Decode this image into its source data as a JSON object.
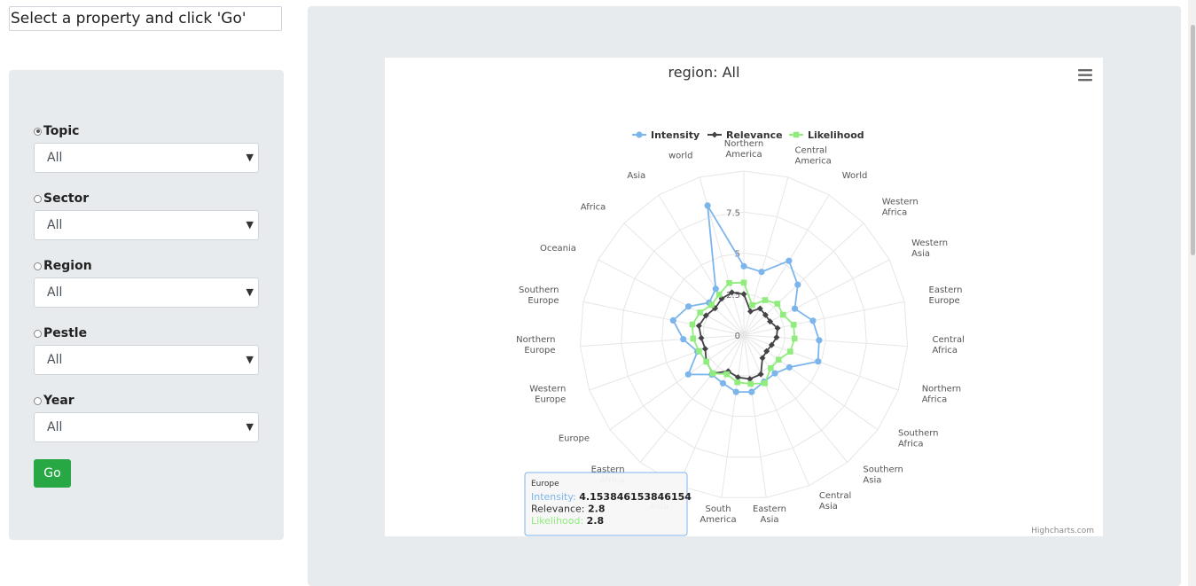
{
  "header": {
    "instruction": "Select a property and click 'Go'"
  },
  "filters": [
    {
      "label": "Topic",
      "selected": "All",
      "checked": true
    },
    {
      "label": "Sector",
      "selected": "All",
      "checked": false
    },
    {
      "label": "Region",
      "selected": "All",
      "checked": false
    },
    {
      "label": "Pestle",
      "selected": "All",
      "checked": false
    },
    {
      "label": "Year",
      "selected": "All",
      "checked": false
    }
  ],
  "go_label": "Go",
  "chart_data": {
    "type": "line",
    "subtype": "polar-radar",
    "title": "region: All",
    "categories": [
      "Northern America",
      "Central America",
      "World",
      "Western Africa",
      "Western Asia",
      "Eastern Europe",
      "Central Africa",
      "Northern Africa",
      "Southern Africa",
      "Southern Asia",
      "Central Asia",
      "Eastern Asia",
      "South America",
      "Southern Asia",
      "Eastern Africa",
      "Europe",
      "Western Europe",
      "Northern Europe",
      "Southern Europe",
      "Oceania",
      "Africa",
      "Asia",
      "world"
    ],
    "radial_ticks": [
      "0",
      "2.5",
      "5",
      "7.5"
    ],
    "ylim": [
      0,
      10
    ],
    "grid": true,
    "legend_position": "top",
    "series": [
      {
        "name": "Intensity",
        "color": "#7cb5ec",
        "marker": "circle",
        "values": [
          4.2,
          4.0,
          5.3,
          4.5,
          3.5,
          4.3,
          4.6,
          4.8,
          3.4,
          3.0,
          3.1,
          3.5,
          3.5,
          3.2,
          3.1,
          4.15,
          3.0,
          3.7,
          4.4,
          3.8,
          2.9,
          3.3,
          8.2
        ]
      },
      {
        "name": "Relevance",
        "color": "#434348",
        "marker": "diamond",
        "values": [
          2.5,
          1.5,
          1.9,
          1.8,
          1.8,
          2.1,
          2.0,
          1.8,
          1.7,
          1.8,
          2.6,
          2.7,
          2.6,
          2.4,
          3.0,
          2.8,
          2.5,
          2.6,
          2.8,
          2.6,
          2.4,
          2.6,
          2.7
        ]
      },
      {
        "name": "Likelihood",
        "color": "#90ed7d",
        "marker": "square",
        "values": [
          3.2,
          1.9,
          2.5,
          2.8,
          2.7,
          3.1,
          3.1,
          3.0,
          2.6,
          2.6,
          3.2,
          3.0,
          2.9,
          2.6,
          3.0,
          2.8,
          2.9,
          3.1,
          3.2,
          3.0,
          2.7,
          2.9,
          3.3
        ]
      }
    ],
    "tooltip": {
      "category": "Europe",
      "rows": [
        {
          "name": "Intensity",
          "value": "4.153846153846154"
        },
        {
          "name": "Relevance",
          "value": "2.8"
        },
        {
          "name": "Likelihood",
          "value": "2.8"
        }
      ]
    },
    "credits": "Highcharts.com",
    "menu_icon": "hamburger-menu-icon"
  }
}
